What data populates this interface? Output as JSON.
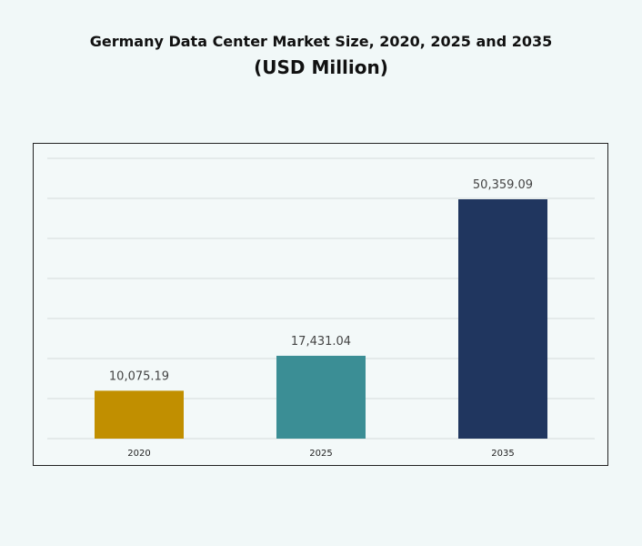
{
  "chart_data": {
    "type": "bar",
    "title": "Germany Data Center Market Size, 2020, 2025 and 2035",
    "subtitle": "(USD Million)",
    "categories": [
      "2020",
      "2025",
      "2035"
    ],
    "values": [
      10075.19,
      17431.04,
      50359.09
    ],
    "data_labels": [
      "10,075.19",
      "17,431.04",
      "50,359.09"
    ],
    "colors": [
      "#c18f00",
      "#3b8e95",
      "#20365f"
    ],
    "xlabel": "",
    "ylabel": "",
    "grid": true,
    "legend": "none"
  }
}
